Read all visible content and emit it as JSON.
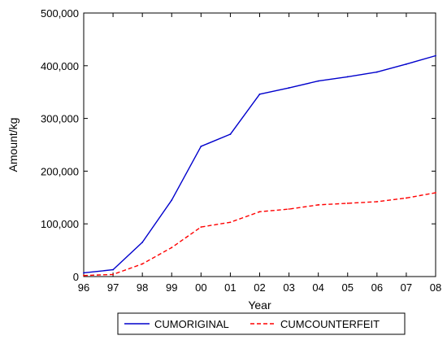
{
  "chart_data": {
    "type": "line",
    "title": "",
    "xlabel": "Year",
    "ylabel": "Amount/kg",
    "categories": [
      "96",
      "97",
      "98",
      "99",
      "00",
      "01",
      "02",
      "03",
      "04",
      "05",
      "06",
      "07",
      "08"
    ],
    "y_ticks": [
      "0",
      "100,000",
      "200,000",
      "300,000",
      "400,000",
      "500,000"
    ],
    "ylim": [
      0,
      500000
    ],
    "grid": false,
    "legend_position": "bottom",
    "series": [
      {
        "name": "CUMORIGINAL",
        "color": "#0000cc",
        "dash": "solid",
        "values": [
          7000,
          13000,
          65000,
          145000,
          247000,
          270000,
          346000,
          358000,
          371000,
          379000,
          388000,
          403000,
          419000
        ]
      },
      {
        "name": "CUMCOUNTERFEIT",
        "color": "#ff0000",
        "dash": "dashed",
        "values": [
          2000,
          4000,
          24000,
          55000,
          94000,
          103000,
          123000,
          128000,
          136000,
          139000,
          142000,
          149000,
          159000
        ]
      }
    ]
  }
}
